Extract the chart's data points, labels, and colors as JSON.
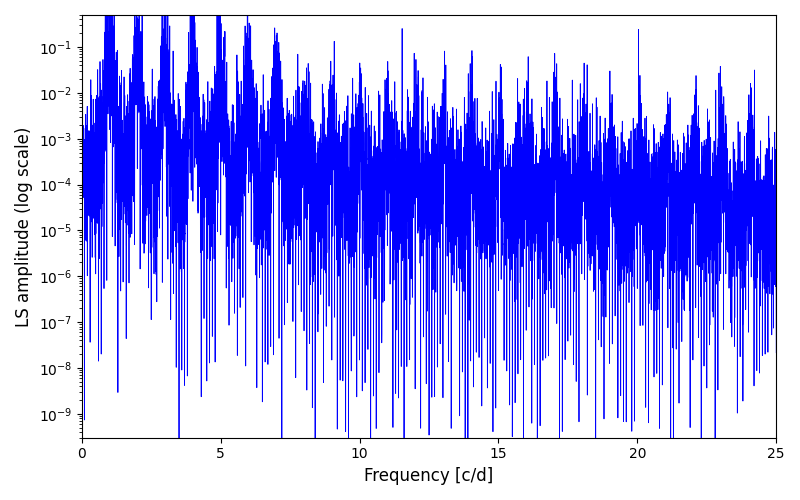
{
  "title": "",
  "xlabel": "Frequency [c/d]",
  "ylabel": "LS amplitude (log scale)",
  "xlim": [
    0,
    25
  ],
  "ylim": [
    3e-10,
    0.5
  ],
  "line_color": "#0000ff",
  "line_width": 0.6,
  "background_color": "#ffffff",
  "figsize": [
    8.0,
    5.0
  ],
  "dpi": 100,
  "seed": 12345,
  "n_points": 8000,
  "freq_max": 25.0
}
